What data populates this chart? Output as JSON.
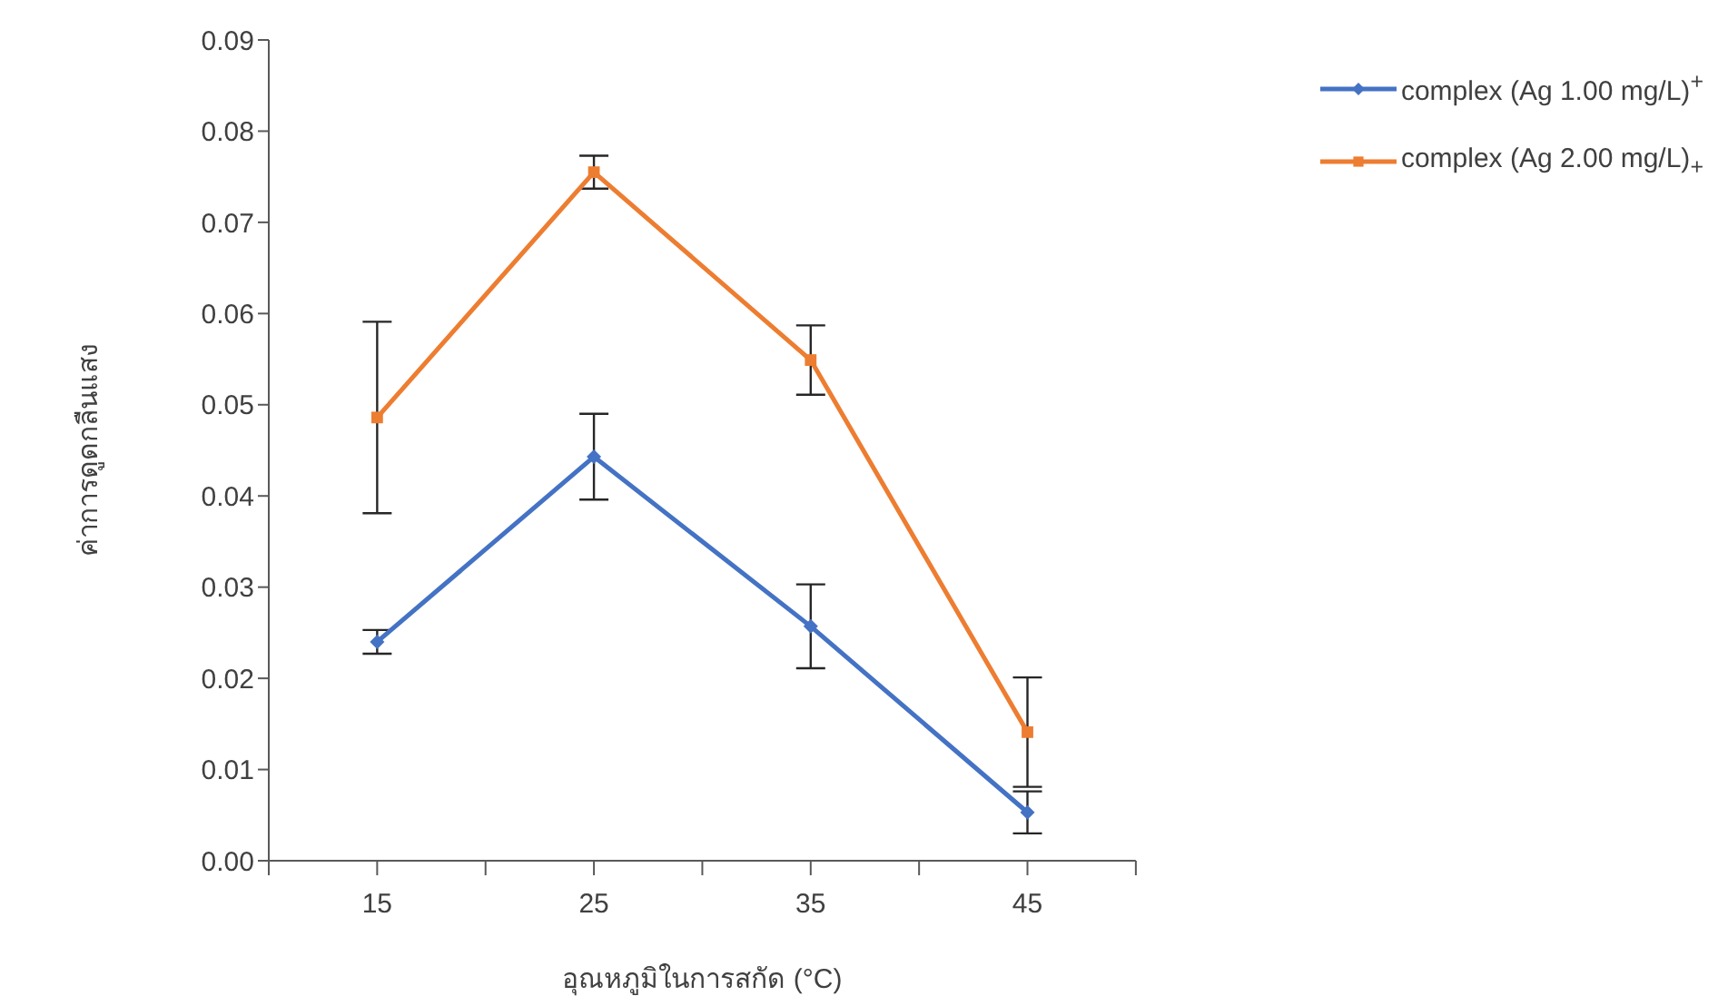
{
  "chart_data": {
    "type": "line",
    "xlabel": "อุณหภูมิในการสกัด (°C)",
    "ylabel": "ค่าการดูดกลืนแสง",
    "x": [
      15,
      25,
      35,
      45
    ],
    "xlim": [
      10,
      50
    ],
    "xticks": [
      {
        "value": 10,
        "label": null
      },
      15,
      {
        "value": 20,
        "label": null
      },
      25,
      {
        "value": 30,
        "label": null
      },
      35,
      {
        "value": 40,
        "label": null
      },
      45,
      {
        "value": 50,
        "label": null
      }
    ],
    "ylim": [
      0,
      0.09
    ],
    "yticks": [
      {
        "value": 0,
        "label": "0.00"
      },
      0.01,
      0.02,
      0.03,
      0.04,
      0.05,
      0.06,
      0.07,
      0.08,
      0.09
    ],
    "series": [
      {
        "name": "complex (Ag 1.00 mg/L)$^{+}$",
        "color": "#4472c4",
        "marker": "diamond",
        "values": [
          0.024,
          0.0443,
          0.0257,
          0.0053
        ],
        "errors": [
          0.0013,
          0.0047,
          0.0046,
          0.0023
        ]
      },
      {
        "name": "complex (Ag 2.00 mg/L)$_{+}$",
        "color": "#ed7d31",
        "marker": "square",
        "values": [
          0.0486,
          0.0755,
          0.0549,
          0.0141
        ],
        "errors": [
          0.0105,
          0.0018,
          0.0038,
          0.006
        ]
      }
    ],
    "grid": false,
    "legend": "top right"
  }
}
